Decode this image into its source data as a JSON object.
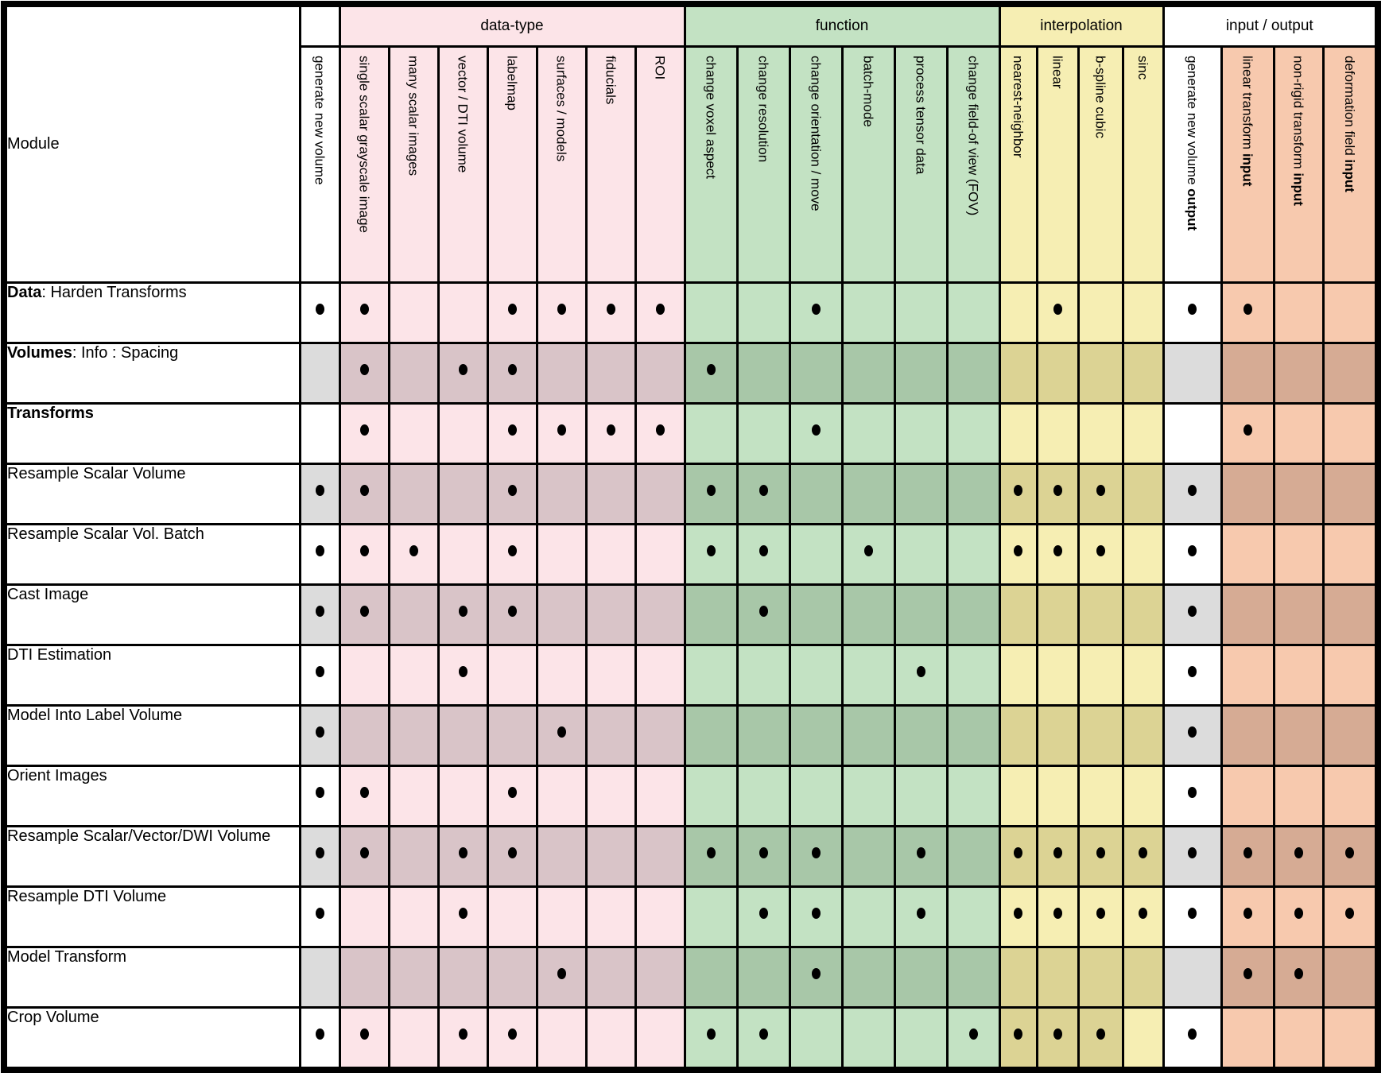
{
  "table": {
    "module_header": "Module",
    "colors": {
      "plain": {
        "light": "#ffffff",
        "dark": "#dcdcdc"
      },
      "pink": {
        "light": "#fce4e8",
        "dark": "#d9c4c8"
      },
      "green": {
        "light": "#c3e2c3",
        "dark": "#a8c7a8"
      },
      "yellow": {
        "light": "#f6eeb3",
        "dark": "#dcd394"
      },
      "salmon": {
        "light": "#f7c9ae",
        "dark": "#d6ab94"
      },
      "border": "#000000",
      "dot": "#000000"
    },
    "groups": [
      {
        "key": "none",
        "label": "",
        "colspan": 1,
        "color": "plain"
      },
      {
        "key": "data-type",
        "label": "data-type",
        "colspan": 7,
        "color": "pink"
      },
      {
        "key": "function",
        "label": "function",
        "colspan": 6,
        "color": "green"
      },
      {
        "key": "interpolation",
        "label": "interpolation",
        "colspan": 4,
        "color": "yellow"
      },
      {
        "key": "input-output",
        "label": "input / output",
        "colspan": 4,
        "color": "plain"
      }
    ],
    "columns": [
      {
        "key": "generate-new-volume",
        "label": "generate new volume",
        "bold": "",
        "color": "plain"
      },
      {
        "key": "single-scalar-grayscale-image",
        "label": "single scalar grayscale image",
        "bold": "",
        "color": "pink"
      },
      {
        "key": "many-scalar-images",
        "label": "many scalar images",
        "bold": "",
        "color": "pink"
      },
      {
        "key": "vector-dti-volume",
        "label": "vector / DTI volume",
        "bold": "",
        "color": "pink"
      },
      {
        "key": "labelmap",
        "label": "labelmap",
        "bold": "",
        "color": "pink"
      },
      {
        "key": "surfaces-models",
        "label": "surfaces / models",
        "bold": "",
        "color": "pink"
      },
      {
        "key": "fiducials",
        "label": "fiducials",
        "bold": "",
        "color": "pink"
      },
      {
        "key": "roi",
        "label": "ROI",
        "bold": "",
        "color": "pink"
      },
      {
        "key": "change-voxel-aspect",
        "label": "change voxel aspect",
        "bold": "",
        "color": "green"
      },
      {
        "key": "change-resolution",
        "label": "change resolution",
        "bold": "",
        "color": "green"
      },
      {
        "key": "change-orientation-move",
        "label": "change orientation / move",
        "bold": "",
        "color": "green"
      },
      {
        "key": "batch-mode",
        "label": "batch-mode",
        "bold": "",
        "color": "green"
      },
      {
        "key": "process-tensor-data",
        "label": "process tensor data",
        "bold": "",
        "color": "green"
      },
      {
        "key": "change-field-of-view",
        "label": "change field-of view (FOV)",
        "bold": "",
        "color": "green"
      },
      {
        "key": "nearest-neighbor",
        "label": "nearest-neighbor",
        "bold": "",
        "color": "yellow"
      },
      {
        "key": "linear",
        "label": "linear",
        "bold": "",
        "color": "yellow"
      },
      {
        "key": "b-spline-cubic",
        "label": "b-spline  cubic",
        "bold": "",
        "color": "yellow"
      },
      {
        "key": "sinc",
        "label": "sinc",
        "bold": "",
        "color": "yellow"
      },
      {
        "key": "generate-new-volume-output",
        "label": "generate new volume ",
        "bold": "output",
        "color": "plain"
      },
      {
        "key": "linear-transform-input",
        "label": "linear transform ",
        "bold": "input",
        "color": "salmon"
      },
      {
        "key": "non-rigid-transform-input",
        "label": "non-rigid transform ",
        "bold": "input",
        "color": "salmon"
      },
      {
        "key": "deformation-field-input",
        "label": "deformation field ",
        "bold": "input",
        "color": "salmon"
      }
    ],
    "rows": [
      {
        "key": "data-harden-transforms",
        "module_bold": "Data",
        "module_rest": ": Harden Transforms",
        "shaded": false,
        "dots": [
          1,
          1,
          0,
          0,
          1,
          1,
          1,
          1,
          0,
          0,
          1,
          0,
          0,
          0,
          0,
          1,
          0,
          0,
          1,
          1,
          0,
          0
        ],
        "dark_cells": []
      },
      {
        "key": "volumes-info-spacing",
        "module_bold": "Volumes",
        "module_rest": ": Info : Spacing",
        "shaded": true,
        "dots": [
          0,
          1,
          0,
          1,
          1,
          0,
          0,
          0,
          1,
          0,
          0,
          0,
          0,
          0,
          0,
          0,
          0,
          0,
          0,
          0,
          0,
          0
        ],
        "dark_cells": []
      },
      {
        "key": "transforms",
        "module_bold": "Transforms",
        "module_rest": "",
        "shaded": false,
        "dots": [
          0,
          1,
          0,
          0,
          1,
          1,
          1,
          1,
          0,
          0,
          1,
          0,
          0,
          0,
          0,
          0,
          0,
          0,
          0,
          1,
          0,
          0
        ],
        "dark_cells": []
      },
      {
        "key": "resample-scalar-volume",
        "module_bold": "",
        "module_rest": "Resample Scalar Volume",
        "shaded": true,
        "dots": [
          1,
          1,
          0,
          0,
          1,
          0,
          0,
          0,
          1,
          1,
          0,
          0,
          0,
          0,
          1,
          1,
          1,
          0,
          1,
          0,
          0,
          0
        ],
        "dark_cells": []
      },
      {
        "key": "resample-scalar-vol-batch",
        "module_bold": "",
        "module_rest": "Resample Scalar Vol. Batch",
        "shaded": false,
        "dots": [
          1,
          1,
          1,
          0,
          1,
          0,
          0,
          0,
          1,
          1,
          0,
          1,
          0,
          0,
          1,
          1,
          1,
          0,
          1,
          0,
          0,
          0
        ],
        "dark_cells": []
      },
      {
        "key": "cast-image",
        "module_bold": "",
        "module_rest": "Cast Image",
        "shaded": true,
        "dots": [
          1,
          1,
          0,
          1,
          1,
          0,
          0,
          0,
          0,
          1,
          0,
          0,
          0,
          0,
          0,
          0,
          0,
          0,
          1,
          0,
          0,
          0
        ],
        "dark_cells": []
      },
      {
        "key": "dti-estimation",
        "module_bold": "",
        "module_rest": "DTI Estimation",
        "shaded": false,
        "dots": [
          1,
          0,
          0,
          1,
          0,
          0,
          0,
          0,
          0,
          0,
          0,
          0,
          1,
          0,
          0,
          0,
          0,
          0,
          1,
          0,
          0,
          0
        ],
        "dark_cells": []
      },
      {
        "key": "model-into-label-volume",
        "module_bold": "",
        "module_rest": "Model Into Label Volume",
        "shaded": true,
        "dots": [
          1,
          0,
          0,
          0,
          0,
          1,
          0,
          0,
          0,
          0,
          0,
          0,
          0,
          0,
          0,
          0,
          0,
          0,
          1,
          0,
          0,
          0
        ],
        "dark_cells": []
      },
      {
        "key": "orient-images",
        "module_bold": "",
        "module_rest": "Orient Images",
        "shaded": false,
        "dots": [
          1,
          1,
          0,
          0,
          1,
          0,
          0,
          0,
          0,
          0,
          0,
          0,
          0,
          0,
          0,
          0,
          0,
          0,
          1,
          0,
          0,
          0
        ],
        "dark_cells": []
      },
      {
        "key": "resample-scalar-vector-dwi-volume",
        "module_bold": "",
        "module_rest": "Resample Scalar/Vector/DWI Volume",
        "shaded": true,
        "dots": [
          1,
          1,
          0,
          1,
          1,
          0,
          0,
          0,
          1,
          1,
          1,
          0,
          1,
          0,
          1,
          1,
          1,
          1,
          1,
          1,
          1,
          1
        ],
        "dark_cells": []
      },
      {
        "key": "resample-dti-volume",
        "module_bold": "",
        "module_rest": "Resample DTI Volume",
        "shaded": false,
        "dots": [
          1,
          0,
          0,
          1,
          0,
          0,
          0,
          0,
          0,
          1,
          1,
          0,
          1,
          0,
          1,
          1,
          1,
          1,
          1,
          1,
          1,
          1
        ],
        "dark_cells": []
      },
      {
        "key": "model-transform",
        "module_bold": "",
        "module_rest": "Model Transform",
        "shaded": true,
        "dots": [
          0,
          0,
          0,
          0,
          0,
          1,
          0,
          0,
          0,
          0,
          1,
          0,
          0,
          0,
          0,
          0,
          0,
          0,
          0,
          1,
          1,
          0
        ],
        "dark_cells": []
      },
      {
        "key": "crop-volume",
        "module_bold": "",
        "module_rest": "Crop Volume",
        "shaded": false,
        "dots": [
          1,
          1,
          0,
          1,
          1,
          0,
          0,
          0,
          1,
          1,
          0,
          0,
          0,
          1,
          1,
          1,
          1,
          0,
          1,
          0,
          0,
          0
        ],
        "dark_cells": [
          14,
          15,
          16
        ]
      }
    ]
  }
}
